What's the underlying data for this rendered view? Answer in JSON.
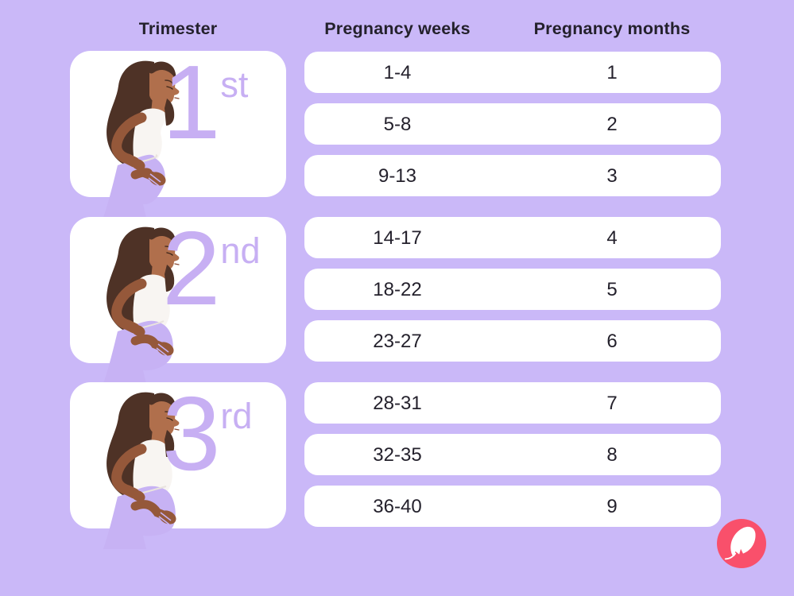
{
  "palette": {
    "bg": "#CAB8F8",
    "surface": "#FFFFFF",
    "text": "#24212C",
    "ordinal": "#C7AFF3",
    "pants": "#C7B2F4",
    "skin": "#B06F4C",
    "skinShade": "#95583A",
    "hair": "#4E3226",
    "shirt": "#F8F5F2",
    "hem": "#E9E3DE",
    "logoPink": "#F9506B",
    "logoGlyph": "#FFFFFF"
  },
  "headers": {
    "trimester": "Trimester",
    "weeks": "Pregnancy weeks",
    "months": "Pregnancy months"
  },
  "trimesters": [
    {
      "label": "1st",
      "ordinal_number": "1",
      "ordinal_suffix": "st",
      "rows": [
        {
          "weeks": "1-4",
          "months": "1"
        },
        {
          "weeks": "5-8",
          "months": "2"
        },
        {
          "weeks": "9-13",
          "months": "3"
        }
      ]
    },
    {
      "label": "2nd",
      "ordinal_number": "2",
      "ordinal_suffix": "nd",
      "rows": [
        {
          "weeks": "14-17",
          "months": "4"
        },
        {
          "weeks": "18-22",
          "months": "5"
        },
        {
          "weeks": "23-27",
          "months": "6"
        }
      ]
    },
    {
      "label": "3rd",
      "ordinal_number": "3",
      "ordinal_suffix": "rd",
      "rows": [
        {
          "weeks": "28-31",
          "months": "7"
        },
        {
          "weeks": "32-35",
          "months": "8"
        },
        {
          "weeks": "36-40",
          "months": "9"
        }
      ]
    }
  ],
  "logo": {
    "name": "Flo",
    "icon": "feather-icon"
  },
  "chart_data": {
    "type": "table",
    "title": "Pregnancy trimesters by weeks and months",
    "columns": [
      "Trimester",
      "Pregnancy weeks",
      "Pregnancy months"
    ],
    "rows": [
      [
        "1st",
        "1-4",
        1
      ],
      [
        "1st",
        "5-8",
        2
      ],
      [
        "1st",
        "9-13",
        3
      ],
      [
        "2nd",
        "14-17",
        4
      ],
      [
        "2nd",
        "18-22",
        5
      ],
      [
        "2nd",
        "23-27",
        6
      ],
      [
        "3rd",
        "28-31",
        7
      ],
      [
        "3rd",
        "32-35",
        8
      ],
      [
        "3rd",
        "36-40",
        9
      ]
    ],
    "legend_position": "none",
    "grid": false
  }
}
